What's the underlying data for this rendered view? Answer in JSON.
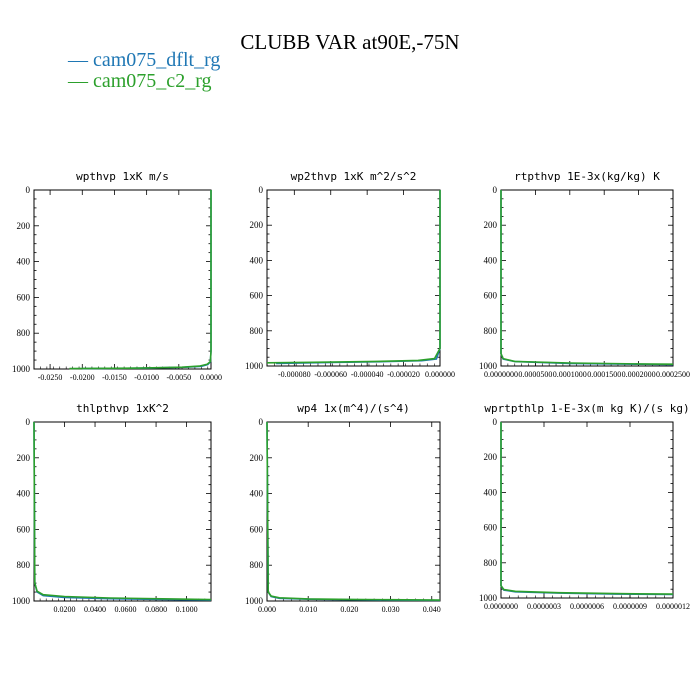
{
  "title": "CLUBB VAR at90E,-75N",
  "legend": [
    {
      "label": "cam075_dflt_rg",
      "color": "#1f77b4"
    },
    {
      "label": "cam075_c2_rg",
      "color": "#2ca02c"
    }
  ],
  "chart_data": [
    {
      "type": "line",
      "title": "wpthvp   1xK m/s",
      "xlim": [
        -0.0275,
        0.0
      ],
      "ylim": [
        1000,
        0
      ],
      "xticks": [
        -0.025,
        -0.02,
        -0.015,
        -0.01,
        -0.005,
        0.0
      ],
      "xtick_labels": [
        "-0.0250",
        "-0.0200",
        "-0.0150",
        "-0.0100",
        "-0.0050",
        "0.0000"
      ],
      "yticks": [
        0,
        200,
        400,
        600,
        800,
        1000
      ],
      "series": [
        {
          "name": "cam075_dflt_rg",
          "x": [
            0.0,
            0.0,
            -0.0001,
            -0.0005,
            -0.0015,
            -0.004,
            -0.01,
            -0.02
          ],
          "y": [
            0,
            900,
            960,
            975,
            985,
            990,
            995,
            998
          ]
        },
        {
          "name": "cam075_c2_rg",
          "x": [
            0.0,
            0.0,
            -0.0001,
            -0.0006,
            -0.0018,
            -0.0045,
            -0.011,
            -0.022
          ],
          "y": [
            0,
            900,
            958,
            974,
            984,
            990,
            995,
            998
          ]
        }
      ]
    },
    {
      "type": "line",
      "title": "wp2thvp   1xK m^2/s^2",
      "xlim": [
        -9.5e-05,
        0.0
      ],
      "ylim": [
        1000,
        0
      ],
      "xticks": [
        -8e-05,
        -6e-05,
        -4e-05,
        -2e-05,
        0.0
      ],
      "xtick_labels": [
        "-0.000080",
        "-0.000060",
        "-0.000040",
        "-0.000020",
        "0.000000"
      ],
      "yticks": [
        0,
        200,
        400,
        600,
        800,
        1000
      ],
      "series": [
        {
          "name": "cam075_dflt_rg",
          "x": [
            0.0,
            0.0,
            -2e-06,
            -1e-05,
            -3e-05,
            -6e-05,
            -9e-05
          ],
          "y": [
            0,
            900,
            960,
            970,
            975,
            980,
            985
          ]
        },
        {
          "name": "cam075_c2_rg",
          "x": [
            0.0,
            0.0,
            -3e-06,
            -1.2e-05,
            -3.5e-05,
            -7e-05,
            -9.5e-05
          ],
          "y": [
            0,
            900,
            958,
            968,
            974,
            979,
            982
          ]
        }
      ]
    },
    {
      "type": "line",
      "title": "rtpthvp   1E-3x(kg/kg) K",
      "xlim": [
        0.0,
        0.00025
      ],
      "ylim": [
        1000,
        0
      ],
      "xticks": [
        0.0,
        5e-05,
        0.0001,
        0.00015,
        0.0002,
        0.00025
      ],
      "xtick_labels": [
        "0.0000000",
        "0.0000500",
        "0.0001000",
        "0.0001500",
        "0.0002000",
        "0.0002500"
      ],
      "yticks": [
        0,
        200,
        400,
        600,
        800,
        1000
      ],
      "series": [
        {
          "name": "cam075_dflt_rg",
          "x": [
            0.0,
            0.0,
            3e-06,
            2e-05,
            0.0001,
            0.0002,
            0.00025
          ],
          "y": [
            0,
            930,
            960,
            975,
            985,
            990,
            992
          ]
        },
        {
          "name": "cam075_c2_rg",
          "x": [
            0.0,
            0.0,
            3e-06,
            2e-05,
            0.0001,
            0.0002,
            0.00025
          ],
          "y": [
            0,
            930,
            958,
            974,
            983,
            988,
            990
          ]
        }
      ]
    },
    {
      "type": "line",
      "title": "thlpthvp   1xK^2",
      "xlim": [
        0.0,
        0.116
      ],
      "ylim": [
        1000,
        0
      ],
      "xticks": [
        0.02,
        0.04,
        0.06,
        0.08,
        0.1
      ],
      "xtick_labels": [
        "0.0200",
        "0.0400",
        "0.0600",
        "0.0800",
        "0.1000"
      ],
      "yticks": [
        0,
        200,
        400,
        600,
        800,
        1000
      ],
      "series": [
        {
          "name": "cam075_dflt_rg",
          "x": [
            0.0,
            0.0005,
            0.002,
            0.006,
            0.02,
            0.05,
            0.09,
            0.116
          ],
          "y": [
            0,
            900,
            950,
            970,
            980,
            987,
            992,
            995
          ]
        },
        {
          "name": "cam075_c2_rg",
          "x": [
            0.0,
            0.0005,
            0.002,
            0.006,
            0.02,
            0.05,
            0.09,
            0.116
          ],
          "y": [
            0,
            900,
            945,
            965,
            975,
            983,
            988,
            992
          ]
        }
      ]
    },
    {
      "type": "line",
      "title": "wp4   1x(m^4)/(s^4)",
      "xlim": [
        0.0,
        0.042
      ],
      "ylim": [
        1000,
        0
      ],
      "xticks": [
        0.0,
        0.01,
        0.02,
        0.03,
        0.04
      ],
      "xtick_labels": [
        "0.000",
        "0.010",
        "0.020",
        "0.030",
        "0.040"
      ],
      "yticks": [
        0,
        200,
        400,
        600,
        800,
        1000
      ],
      "series": [
        {
          "name": "cam075_dflt_rg",
          "x": [
            0.0,
            0.0003,
            0.001,
            0.003,
            0.01,
            0.02,
            0.03,
            0.042
          ],
          "y": [
            0,
            950,
            975,
            985,
            990,
            993,
            995,
            996
          ]
        },
        {
          "name": "cam075_c2_rg",
          "x": [
            0.0,
            0.0003,
            0.001,
            0.003,
            0.01,
            0.02,
            0.03,
            0.042
          ],
          "y": [
            0,
            950,
            972,
            982,
            988,
            991,
            993,
            995
          ]
        }
      ]
    },
    {
      "type": "line",
      "title": "wprtpthlp   1-E-3x(m kg K)/(s kg)",
      "xlim": [
        0.0,
        1.2e-06
      ],
      "ylim": [
        1000,
        0
      ],
      "xticks": [
        0.0,
        3e-07,
        6e-07,
        9e-07,
        1.2e-06
      ],
      "xtick_labels": [
        "0.0000000",
        "0.0000003",
        "0.0000006",
        "0.0000009",
        "0.0000012"
      ],
      "yticks": [
        0,
        200,
        400,
        600,
        800,
        1000
      ],
      "series": [
        {
          "name": "cam075_dflt_rg",
          "x": [
            0.0,
            0.0,
            2e-08,
            1e-07,
            4e-07,
            8e-07,
            1.2e-06
          ],
          "y": [
            0,
            930,
            955,
            965,
            972,
            978,
            980
          ]
        },
        {
          "name": "cam075_c2_rg",
          "x": [
            0.0,
            0.0,
            2e-08,
            1e-07,
            4e-07,
            8e-07,
            1.2e-06
          ],
          "y": [
            0,
            930,
            952,
            962,
            970,
            975,
            978
          ]
        }
      ]
    }
  ]
}
